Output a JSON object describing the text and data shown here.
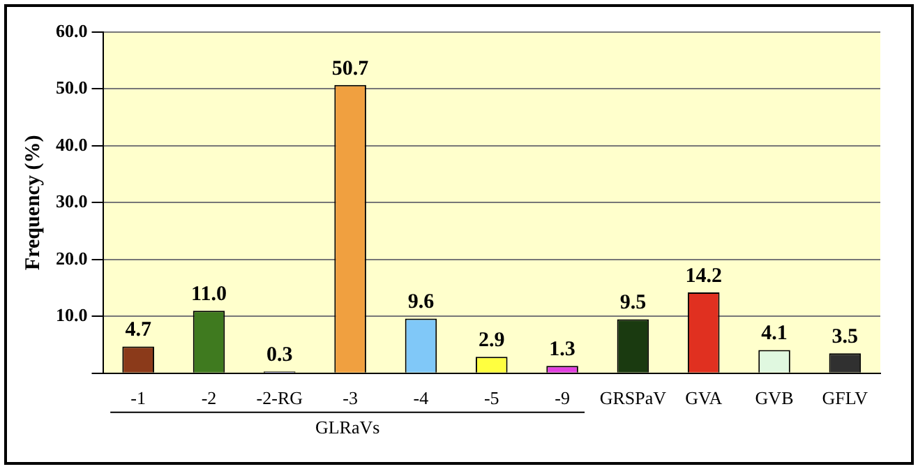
{
  "chart_data": {
    "type": "bar",
    "ylabel": "Frequency (%)",
    "categories": [
      "-1",
      "-2",
      "-2-RG",
      "-3",
      "-4",
      "-5",
      "-9",
      "GRSPaV",
      "GVA",
      "GVB",
      "GFLV"
    ],
    "values": [
      4.7,
      11.0,
      0.3,
      50.7,
      9.6,
      2.9,
      1.3,
      9.5,
      14.2,
      4.1,
      3.5
    ],
    "colors": [
      "#8b3a1a",
      "#3f7a1f",
      "#8080e0",
      "#f0a040",
      "#80c8f8",
      "#ffff40",
      "#e040e0",
      "#1a3a10",
      "#e03020",
      "#e0f8e0",
      "#303030"
    ],
    "value_labels": [
      "4.7",
      "11.0",
      "0.3",
      "50.7",
      "9.6",
      "2.9",
      "1.3",
      "9.5",
      "14.2",
      "4.1",
      "3.5"
    ],
    "ylim": [
      0,
      60
    ],
    "yticks": [
      {
        "value": 0,
        "label": null
      },
      {
        "value": 10,
        "label": "10.0"
      },
      {
        "value": 20,
        "label": "20.0"
      },
      {
        "value": 30,
        "label": "30.0"
      },
      {
        "value": 40,
        "label": "40.0"
      },
      {
        "value": 50,
        "label": "50.0"
      },
      {
        "value": 60,
        "label": "60.0"
      }
    ],
    "grid": "y",
    "legend": false,
    "annotations": [
      "GLRaVs"
    ]
  }
}
